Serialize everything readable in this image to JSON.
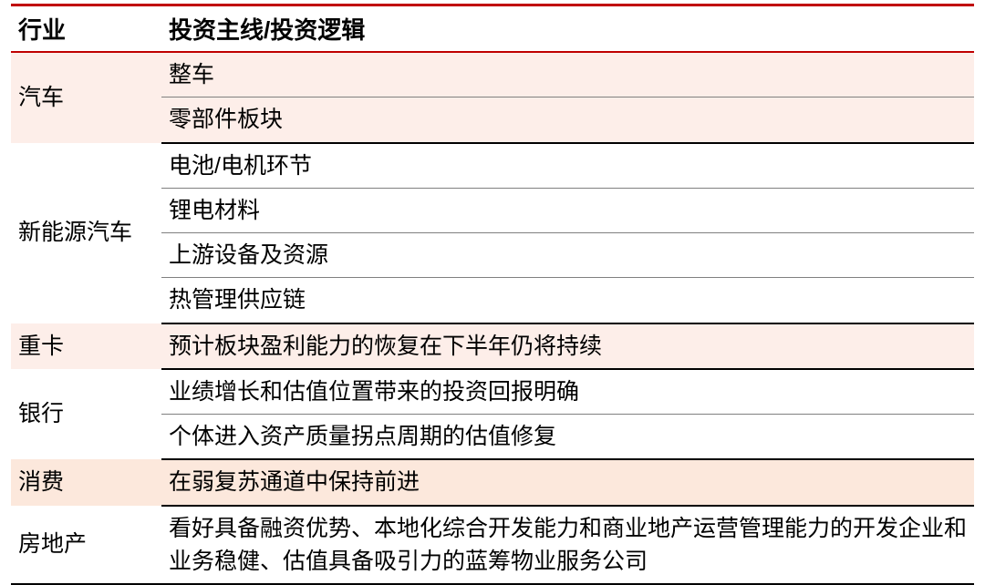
{
  "columns": {
    "industry": "行业",
    "logic": "投资主线/投资逻辑"
  },
  "sections": [
    {
      "industry": "汽车",
      "row_color": "pink",
      "logics": [
        "整车",
        "零部件板块"
      ]
    },
    {
      "industry": "新能源汽车",
      "row_color": "white",
      "logics": [
        "电池/电机环节",
        "锂电材料",
        "上游设备及资源",
        "热管理供应链"
      ]
    },
    {
      "industry": "重卡",
      "row_color": "pink",
      "logics": [
        "预计板块盈利能力的恢复在下半年仍将持续"
      ]
    },
    {
      "industry": "银行",
      "row_color": "white",
      "logics": [
        "业绩增长和估值位置带来的投资回报明确",
        "个体进入资产质量拐点周期的估值修复"
      ]
    },
    {
      "industry": "消费",
      "row_color": "orange",
      "logics": [
        "在弱复苏通道中保持前进"
      ]
    },
    {
      "industry": "房地产",
      "row_color": "white",
      "logics": [
        "看好具备融资优势、本地化综合开发能力和商业地产运营管理能力的开发企业和业务稳健、估值具备吸引力的蓝筹物业服务公司"
      ]
    }
  ],
  "styling": {
    "top_border_color": "#c00000",
    "header_border_color": "#c00000",
    "row_divider_color": "#808080",
    "section_divider_color": "#000000",
    "pink_bg": "#fdeee9",
    "orange_bg": "#fce8dc",
    "white_bg": "#ffffff",
    "header_fontsize": 26,
    "cell_fontsize": 25,
    "col1_width": 165
  }
}
